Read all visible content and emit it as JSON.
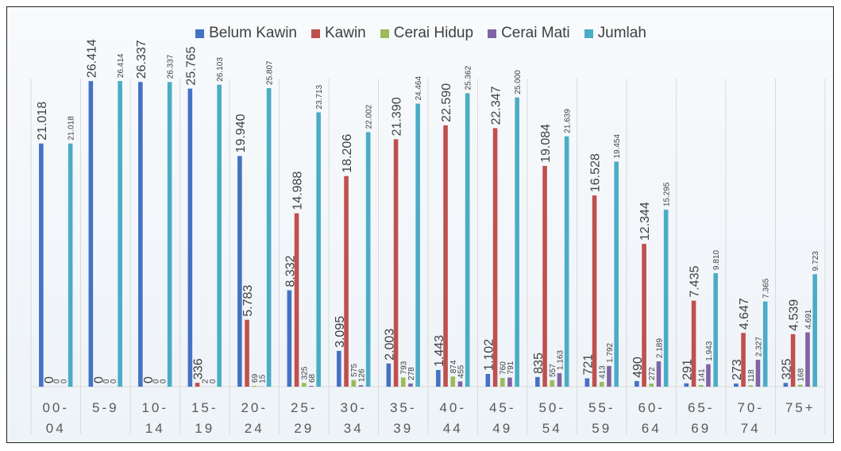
{
  "chart_data": {
    "type": "bar",
    "categories": [
      "00-04",
      "5-9",
      "10-14",
      "15-19",
      "20-24",
      "25-29",
      "30-34",
      "35-39",
      "40-44",
      "45-49",
      "50-54",
      "55-59",
      "60-64",
      "65-69",
      "70-74",
      "75+"
    ],
    "category_lines": [
      [
        "00-",
        "04"
      ],
      [
        "5-9",
        ""
      ],
      [
        "10-",
        "14"
      ],
      [
        "15-",
        "19"
      ],
      [
        "20-",
        "24"
      ],
      [
        "25-",
        "29"
      ],
      [
        "30-",
        "34"
      ],
      [
        "35-",
        "39"
      ],
      [
        "40-",
        "44"
      ],
      [
        "45-",
        "49"
      ],
      [
        "50-",
        "54"
      ],
      [
        "55-",
        "59"
      ],
      [
        "60-",
        "64"
      ],
      [
        "65-",
        "69"
      ],
      [
        "70-",
        "74"
      ],
      [
        "75+",
        ""
      ]
    ],
    "series": [
      {
        "name": "Belum Kawin",
        "color": "#4472c4",
        "values": [
          21018,
          26414,
          26337,
          25765,
          19940,
          8332,
          3095,
          2003,
          1443,
          1102,
          835,
          721,
          490,
          291,
          273,
          325
        ],
        "labels": [
          "21.018",
          "26.414",
          "26.337",
          "25.765",
          "19.940",
          "8.332",
          "3.095",
          "2.003",
          "1.443",
          "1.102",
          "835",
          "721",
          "490",
          "291",
          "273",
          "325"
        ]
      },
      {
        "name": "Kawin",
        "color": "#c0504d",
        "values": [
          0,
          0,
          0,
          336,
          5783,
          14988,
          18206,
          21390,
          22590,
          22347,
          19084,
          16528,
          12344,
          7435,
          4647,
          4539
        ],
        "labels": [
          "0",
          "0",
          "0",
          "336",
          "5.783",
          "14.988",
          "18.206",
          "21.390",
          "22.590",
          "22.347",
          "19.084",
          "16.528",
          "12.344",
          "7.435",
          "4.647",
          "4.539"
        ]
      },
      {
        "name": "Cerai Hidup",
        "color": "#9bbb59",
        "values": [
          0,
          0,
          0,
          2,
          69,
          325,
          575,
          793,
          874,
          760,
          557,
          413,
          272,
          141,
          118,
          168
        ],
        "labels": [
          "0",
          "0",
          "0",
          "2",
          "69",
          "325",
          "575",
          "793",
          "874",
          "760",
          "557",
          "413",
          "272",
          "141",
          "118",
          "168"
        ]
      },
      {
        "name": "Cerai Mati",
        "color": "#8064a2",
        "values": [
          0,
          0,
          0,
          0,
          15,
          68,
          126,
          278,
          455,
          791,
          1163,
          1792,
          2189,
          1943,
          2327,
          4691
        ],
        "labels": [
          "0",
          "0",
          "0",
          "0",
          "15",
          "68",
          "126",
          "278",
          "455",
          "791",
          "1.163",
          "1.792",
          "2.189",
          "1.943",
          "2.327",
          "4.691"
        ]
      },
      {
        "name": "Jumlah",
        "color": "#4bacc6",
        "values": [
          21018,
          26414,
          26337,
          26103,
          25807,
          23713,
          22002,
          24464,
          25362,
          25000,
          21639,
          19454,
          15295,
          9810,
          7365,
          9723
        ],
        "labels": [
          "21.018",
          "26.414",
          "26.337",
          "26.103",
          "25.807",
          "23.713",
          "22.002",
          "24.464",
          "25.362",
          "25.000",
          "21.639",
          "19.454",
          "15.295",
          "9.810",
          "7.365",
          "9.723"
        ]
      }
    ],
    "ylim": [
      0,
      28000
    ],
    "grid": "vertical-category-separators",
    "legend_position": "top"
  }
}
